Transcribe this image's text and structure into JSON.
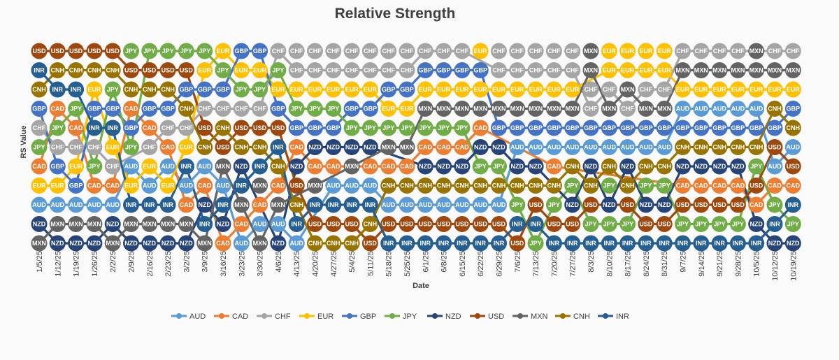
{
  "chart_data": {
    "type": "line",
    "title": "Relative Strength",
    "xlabel": "Date",
    "ylabel": "RS Value",
    "grid": false,
    "legend": "bottom",
    "marker_labels": true,
    "x": [
      "1/5/25",
      "1/12/25",
      "1/19/25",
      "1/26/25",
      "2/2/25",
      "2/9/25",
      "2/16/25",
      "2/23/25",
      "3/2/25",
      "3/9/25",
      "3/16/25",
      "3/23/25",
      "3/30/25",
      "4/6/25",
      "4/13/25",
      "4/20/25",
      "4/27/25",
      "5/4/25",
      "5/11/25",
      "5/18/25",
      "5/25/25",
      "6/1/25",
      "6/8/25",
      "6/15/25",
      "6/22/25",
      "6/29/25",
      "7/6/25",
      "7/13/25",
      "7/20/25",
      "7/27/25",
      "8/3/25",
      "8/10/25",
      "8/17/25",
      "8/24/25",
      "8/31/25",
      "9/7/25",
      "9/14/25",
      "9/21/25",
      "9/28/25",
      "10/5/25",
      "10/12/25",
      "10/19/25"
    ],
    "ranks": [
      [
        "MXN",
        "NZD",
        "AUD",
        "EUR",
        "CAD",
        "JPY",
        "CHF",
        "GBP",
        "CNH",
        "INR",
        "USD"
      ],
      [
        "NZD",
        "MXN",
        "AUD",
        "EUR",
        "GBP",
        "CHF",
        "JPY",
        "CAD",
        "INR",
        "CNH",
        "USD"
      ],
      [
        "NZD",
        "MXN",
        "AUD",
        "GBP",
        "EUR",
        "CHF",
        "CAD",
        "JPY",
        "INR",
        "CNH",
        "USD"
      ],
      [
        "NZD",
        "MXN",
        "AUD",
        "CAD",
        "JPY",
        "CHF",
        "INR",
        "GBP",
        "EUR",
        "CNH",
        "USD"
      ],
      [
        "MXN",
        "NZD",
        "AUD",
        "CAD",
        "CHF",
        "EUR",
        "INR",
        "GBP",
        "JPY",
        "CNH",
        "USD"
      ],
      [
        "NZD",
        "MXN",
        "INR",
        "EUR",
        "AUD",
        "JPY",
        "GBP",
        "CAD",
        "CNH",
        "USD",
        "JPY"
      ],
      [
        "NZD",
        "MXN",
        "INR",
        "AUD",
        "EUR",
        "CHF",
        "CAD",
        "GBP",
        "CNH",
        "USD",
        "JPY"
      ],
      [
        "NZD",
        "MXN",
        "INR",
        "EUR",
        "AUD",
        "CAD",
        "CHF",
        "GBP",
        "CNH",
        "USD",
        "JPY"
      ],
      [
        "NZD",
        "MXN",
        "CAD",
        "AUD",
        "INR",
        "EUR",
        "CHF",
        "CNH",
        "GBP",
        "USD",
        "JPY"
      ],
      [
        "MXN",
        "INR",
        "NZD",
        "CAD",
        "AUD",
        "CNH",
        "USD",
        "CHF",
        "GBP",
        "EUR",
        "JPY"
      ],
      [
        "CAD",
        "NZD",
        "INR",
        "AUD",
        "MXN",
        "USD",
        "CNH",
        "CHF",
        "GBP",
        "JPY",
        "EUR"
      ],
      [
        "AUD",
        "CAD",
        "MXN",
        "INR",
        "NZD",
        "CNH",
        "USD",
        "CHF",
        "JPY",
        "EUR",
        "GBP"
      ],
      [
        "MXN",
        "AUD",
        "CAD",
        "MXN",
        "INR",
        "CNH",
        "USD",
        "CHF",
        "JPY",
        "EUR",
        "GBP"
      ],
      [
        "NZD",
        "AUD",
        "MXN",
        "CAD",
        "CNH",
        "INR",
        "USD",
        "GBP",
        "EUR",
        "JPY",
        "CHF"
      ],
      [
        "AUD",
        "INR",
        "CNH",
        "USD",
        "NZD",
        "CAD",
        "GBP",
        "JPY",
        "EUR",
        "CHF",
        "CHF"
      ],
      [
        "CNH",
        "USD",
        "INR",
        "MXN",
        "CAD",
        "NZD",
        "GBP",
        "JPY",
        "EUR",
        "CHF",
        "CHF"
      ],
      [
        "CNH",
        "USD",
        "INR",
        "AUD",
        "CAD",
        "NZD",
        "GBP",
        "JPY",
        "EUR",
        "CHF",
        "CHF"
      ],
      [
        "CNH",
        "USD",
        "INR",
        "AUD",
        "MXN",
        "NZD",
        "JPY",
        "GBP",
        "EUR",
        "CHF",
        "CHF"
      ],
      [
        "USD",
        "CNH",
        "INR",
        "AUD",
        "CAD",
        "NZD",
        "JPY",
        "GBP",
        "EUR",
        "CHF",
        "CHF"
      ],
      [
        "INR",
        "USD",
        "AUD",
        "CNH",
        "CAD",
        "MXN",
        "JPY",
        "EUR",
        "GBP",
        "CHF",
        "CHF"
      ],
      [
        "INR",
        "USD",
        "AUD",
        "CNH",
        "CAD",
        "MXN",
        "JPY",
        "EUR",
        "GBP",
        "CHF",
        "CHF"
      ],
      [
        "INR",
        "USD",
        "AUD",
        "CNH",
        "NZD",
        "CAD",
        "JPY",
        "MXN",
        "EUR",
        "GBP",
        "CHF"
      ],
      [
        "INR",
        "USD",
        "AUD",
        "CNH",
        "NZD",
        "CAD",
        "JPY",
        "MXN",
        "EUR",
        "GBP",
        "CHF"
      ],
      [
        "INR",
        "USD",
        "AUD",
        "CNH",
        "NZD",
        "CAD",
        "JPY",
        "MXN",
        "EUR",
        "GBP",
        "CHF"
      ],
      [
        "INR",
        "USD",
        "AUD",
        "CNH",
        "JPY",
        "NZD",
        "CAD",
        "MXN",
        "EUR",
        "GBP",
        "EUR"
      ],
      [
        "INR",
        "USD",
        "AUD",
        "CNH",
        "JPY",
        "NZD",
        "GBP",
        "MXN",
        "EUR",
        "CHF",
        "CHF"
      ],
      [
        "USD",
        "INR",
        "JPY",
        "CNH",
        "NZD",
        "AUD",
        "GBP",
        "MXN",
        "EUR",
        "CHF",
        "CHF"
      ],
      [
        "JPY",
        "INR",
        "USD",
        "CNH",
        "NZD",
        "AUD",
        "GBP",
        "MXN",
        "EUR",
        "CHF",
        "CHF"
      ],
      [
        "INR",
        "USD",
        "JPY",
        "CNH",
        "CAD",
        "AUD",
        "GBP",
        "MXN",
        "EUR",
        "CHF",
        "CHF"
      ],
      [
        "INR",
        "USD",
        "NZD",
        "JPY",
        "CNH",
        "AUD",
        "GBP",
        "MXN",
        "EUR",
        "CHF",
        "CHF"
      ],
      [
        "INR",
        "JPY",
        "USD",
        "CNH",
        "NZD",
        "AUD",
        "GBP",
        "CHF",
        "CHF",
        "MXN",
        "MXN"
      ],
      [
        "INR",
        "JPY",
        "NZD",
        "JPY",
        "CNH",
        "AUD",
        "GBP",
        "MXN",
        "CHF",
        "EUR",
        "EUR"
      ],
      [
        "INR",
        "JPY",
        "USD",
        "CNH",
        "NZD",
        "AUD",
        "GBP",
        "CHF",
        "MXN",
        "EUR",
        "EUR"
      ],
      [
        "INR",
        "USD",
        "NZD",
        "JPY",
        "CNH",
        "AUD",
        "GBP",
        "MXN",
        "CHF",
        "EUR",
        "EUR"
      ],
      [
        "INR",
        "USD",
        "NZD",
        "JPY",
        "CNH",
        "AUD",
        "GBP",
        "MXN",
        "CHF",
        "EUR",
        "EUR"
      ],
      [
        "INR",
        "JPY",
        "USD",
        "CAD",
        "NZD",
        "CNH",
        "GBP",
        "AUD",
        "EUR",
        "MXN",
        "CHF"
      ],
      [
        "INR",
        "JPY",
        "USD",
        "CAD",
        "NZD",
        "CNH",
        "GBP",
        "AUD",
        "EUR",
        "MXN",
        "CHF"
      ],
      [
        "INR",
        "JPY",
        "USD",
        "CAD",
        "NZD",
        "CNH",
        "GBP",
        "AUD",
        "EUR",
        "MXN",
        "CHF"
      ],
      [
        "INR",
        "JPY",
        "USD",
        "CAD",
        "NZD",
        "CNH",
        "GBP",
        "AUD",
        "EUR",
        "MXN",
        "CHF"
      ],
      [
        "INR",
        "NZD",
        "CAD",
        "USD",
        "JPY",
        "CNH",
        "GBP",
        "AUD",
        "EUR",
        "MXN",
        "MXN"
      ],
      [
        "NZD",
        "INR",
        "JPY",
        "CAD",
        "AUD",
        "USD",
        "GBP",
        "CNH",
        "EUR",
        "MXN",
        "CHF"
      ],
      [
        "NZD",
        "JPY",
        "INR",
        "CAD",
        "USD",
        "AUD",
        "CNH",
        "GBP",
        "EUR",
        "MXN",
        "CHF"
      ]
    ],
    "series": [
      {
        "name": "AUD",
        "color": "#5B9BD5"
      },
      {
        "name": "CAD",
        "color": "#ED7D31"
      },
      {
        "name": "CHF",
        "color": "#A5A5A5"
      },
      {
        "name": "EUR",
        "color": "#FFC000"
      },
      {
        "name": "GBP",
        "color": "#4472C4"
      },
      {
        "name": "JPY",
        "color": "#70AD47"
      },
      {
        "name": "NZD",
        "color": "#264478"
      },
      {
        "name": "USD",
        "color": "#9E480E"
      },
      {
        "name": "MXN",
        "color": "#636363"
      },
      {
        "name": "CNH",
        "color": "#997300"
      },
      {
        "name": "INR",
        "color": "#255E91"
      }
    ],
    "y_ticks": [],
    "ylim": [
      1,
      11
    ]
  }
}
